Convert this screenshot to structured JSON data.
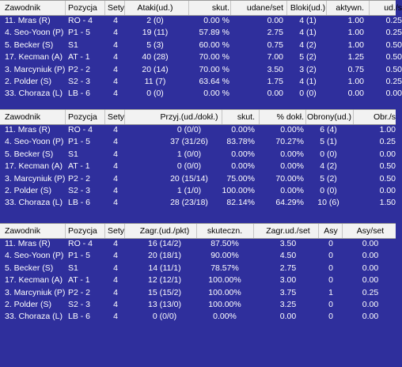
{
  "tables": [
    {
      "headers": [
        "Zawodnik",
        "Pozycja",
        "Sety",
        "Ataki(ud.)",
        "skut.",
        "udane/set",
        "Bloki(ud.)",
        "aktywn.",
        "ud./s"
      ],
      "rows": [
        [
          "11. Mras (R)",
          "RO - 4",
          "4",
          "2 (0)",
          "0.00 %",
          "0.00",
          "4 (1)",
          "1.00",
          "0.25"
        ],
        [
          "4. Seo-Yoon (P)",
          "P1 - 5",
          "4",
          "19 (11)",
          "57.89 %",
          "2.75",
          "4 (1)",
          "1.00",
          "0.25"
        ],
        [
          "5. Becker (S)",
          "S1",
          "4",
          "5 (3)",
          "60.00 %",
          "0.75",
          "4 (2)",
          "1.00",
          "0.50"
        ],
        [
          "17. Kecman (A)",
          "AT - 1",
          "4",
          "40 (28)",
          "70.00 %",
          "7.00",
          "5 (2)",
          "1.25",
          "0.50"
        ],
        [
          "3. Marcyniuk (P)",
          "P2 - 2",
          "4",
          "20 (14)",
          "70.00 %",
          "3.50",
          "3 (2)",
          "0.75",
          "0.50"
        ],
        [
          "2. Polder (S)",
          "S2 - 3",
          "4",
          "11 (7)",
          "63.64 %",
          "1.75",
          "4 (1)",
          "1.00",
          "0.25"
        ],
        [
          "33. Choraza (L)",
          "LB - 6",
          "4",
          "0 (0)",
          "0.00 %",
          "0.00",
          "0 (0)",
          "0.00",
          "0.00"
        ]
      ]
    },
    {
      "headers": [
        "Zawodnik",
        "Pozycja",
        "Sety",
        "Przyj.(ud./dokł.)",
        "skut.",
        "% dokł.",
        "Obrony(ud.)",
        "Obr./s"
      ],
      "rows": [
        [
          "11. Mras (R)",
          "RO - 4",
          "4",
          "0 (0/0)",
          "0.00%",
          "0.00%",
          "6 (4)",
          "1.00"
        ],
        [
          "4. Seo-Yoon (P)",
          "P1 - 5",
          "4",
          "37 (31/26)",
          "83.78%",
          "70.27%",
          "5 (1)",
          "0.25"
        ],
        [
          "5. Becker (S)",
          "S1",
          "4",
          "1 (0/0)",
          "0.00%",
          "0.00%",
          "0 (0)",
          "0.00"
        ],
        [
          "17. Kecman (A)",
          "AT - 1",
          "4",
          "0 (0/0)",
          "0.00%",
          "0.00%",
          "4 (2)",
          "0.50"
        ],
        [
          "3. Marcyniuk (P)",
          "P2 - 2",
          "4",
          "20 (15/14)",
          "75.00%",
          "70.00%",
          "5 (2)",
          "0.50"
        ],
        [
          "2. Polder (S)",
          "S2 - 3",
          "4",
          "1 (1/0)",
          "100.00%",
          "0.00%",
          "0 (0)",
          "0.00"
        ],
        [
          "33. Choraza (L)",
          "LB - 6",
          "4",
          "28 (23/18)",
          "82.14%",
          "64.29%",
          "10 (6)",
          "1.50"
        ]
      ]
    },
    {
      "headers": [
        "Zawodnik",
        "Pozycja",
        "Sety",
        "Zagr.(ud./pkt)",
        "skuteczn.",
        "Zagr.ud./set",
        "Asy",
        "Asy/set"
      ],
      "rows": [
        [
          "11. Mras (R)",
          "RO - 4",
          "4",
          "16 (14/2)",
          "87.50%",
          "3.50",
          "0",
          "0.00"
        ],
        [
          "4. Seo-Yoon (P)",
          "P1 - 5",
          "4",
          "20 (18/1)",
          "90.00%",
          "4.50",
          "0",
          "0.00"
        ],
        [
          "5. Becker (S)",
          "S1",
          "4",
          "14 (11/1)",
          "78.57%",
          "2.75",
          "0",
          "0.00"
        ],
        [
          "17. Kecman (A)",
          "AT - 1",
          "4",
          "12 (12/1)",
          "100.00%",
          "3.00",
          "0",
          "0.00"
        ],
        [
          "3. Marcyniuk (P)",
          "P2 - 2",
          "4",
          "15 (15/2)",
          "100.00%",
          "3.75",
          "1",
          "0.25"
        ],
        [
          "2. Polder (S)",
          "S2 - 3",
          "4",
          "13 (13/0)",
          "100.00%",
          "3.25",
          "0",
          "0.00"
        ],
        [
          "33. Choraza (L)",
          "LB - 6",
          "4",
          "0 (0/0)",
          "0.00%",
          "0.00",
          "0",
          "0.00"
        ]
      ]
    }
  ]
}
